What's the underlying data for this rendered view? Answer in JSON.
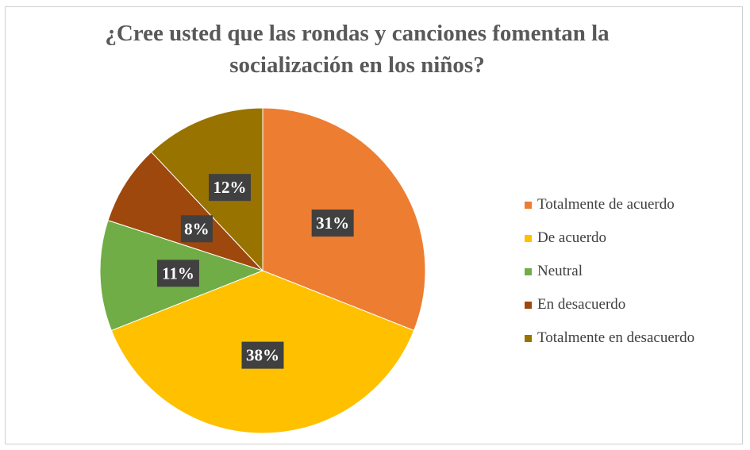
{
  "chart_data": {
    "type": "pie",
    "title_line1": "¿Cree usted que las rondas y canciones fomentan la",
    "title_line2": "socialización en los niños?",
    "categories": [
      "Totalmente de acuerdo",
      "De acuerdo",
      "Neutral",
      "En desacuerdo",
      "Totalmente en desacuerdo"
    ],
    "values": [
      31,
      38,
      11,
      8,
      12
    ],
    "labels": [
      "31%",
      "38%",
      "11%",
      "8%",
      "12%"
    ],
    "colors": [
      "#ED7D31",
      "#FFC000",
      "#70AD47",
      "#9E480E",
      "#997300"
    ],
    "label_box_color": "#404040",
    "legend_position": "right"
  }
}
